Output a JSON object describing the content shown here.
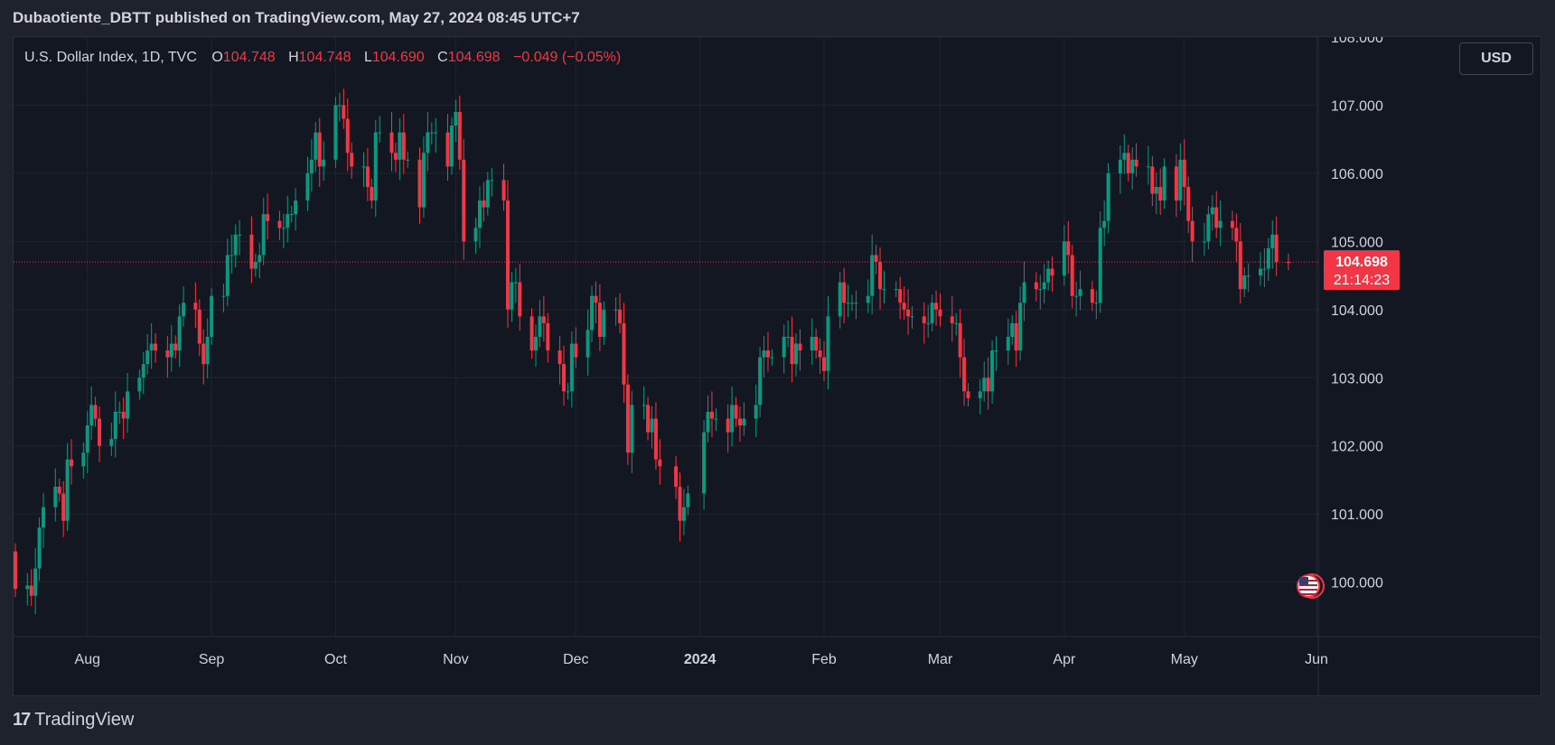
{
  "publisher_line": "Dubaotiente_DBTT published on TradingView.com, May 27, 2024 08:45 UTC+7",
  "legend": {
    "symbol": "U.S. Dollar Index, 1D, TVC",
    "open_label": "O",
    "open": "104.748",
    "high_label": "H",
    "high": "104.748",
    "low_label": "L",
    "low": "104.690",
    "close_label": "C",
    "close": "104.698",
    "change": "−0.049 (−0.05%)"
  },
  "currency_button": "USD",
  "price_badge": {
    "price": "104.698",
    "countdown": "21:14:23"
  },
  "footer": {
    "brand": "TradingView",
    "logo_mark": "17"
  },
  "colors": {
    "up": "#089981",
    "down": "#f23645",
    "background": "#131722",
    "grid": "#1f2430",
    "text": "#d1d4dc",
    "price_line": "#f23645"
  },
  "icons": {
    "flag": "us-flag-icon",
    "logo": "tradingview-logo-icon"
  },
  "chart_data": {
    "type": "candlestick",
    "title": "U.S. Dollar Index, 1D, TVC",
    "ylim": [
      99.2,
      108.0
    ],
    "y_ticks": [
      100,
      101,
      102,
      103,
      104,
      105,
      106,
      107,
      108
    ],
    "y_tick_labels": [
      "100.000",
      "101.000",
      "102.000",
      "103.000",
      "104.000",
      "105.000",
      "106.000",
      "107.000",
      "108.000"
    ],
    "x_ticks": [
      {
        "label": "Aug",
        "date": "2023-08-01"
      },
      {
        "label": "Sep",
        "date": "2023-09-01"
      },
      {
        "label": "Oct",
        "date": "2023-10-02"
      },
      {
        "label": "Nov",
        "date": "2023-11-01"
      },
      {
        "label": "Dec",
        "date": "2023-12-01"
      },
      {
        "label": "2024",
        "date": "2024-01-01"
      },
      {
        "label": "Feb",
        "date": "2024-02-01"
      },
      {
        "label": "Mar",
        "date": "2024-03-01"
      },
      {
        "label": "Apr",
        "date": "2024-04-01"
      },
      {
        "label": "May",
        "date": "2024-05-01"
      },
      {
        "label": "Jun",
        "date": "2024-06-03"
      }
    ],
    "last_price": 104.698,
    "grid": true,
    "closes": [
      [
        "2023-07-14",
        99.9
      ],
      [
        "2023-07-17",
        99.95
      ],
      [
        "2023-07-18",
        99.8
      ],
      [
        "2023-07-19",
        100.2
      ],
      [
        "2023-07-20",
        100.8
      ],
      [
        "2023-07-21",
        101.1
      ],
      [
        "2023-07-24",
        101.4
      ],
      [
        "2023-07-25",
        101.3
      ],
      [
        "2023-07-26",
        100.9
      ],
      [
        "2023-07-27",
        101.8
      ],
      [
        "2023-07-28",
        101.7
      ],
      [
        "2023-07-31",
        101.9
      ],
      [
        "2023-08-01",
        102.3
      ],
      [
        "2023-08-02",
        102.6
      ],
      [
        "2023-08-03",
        102.4
      ],
      [
        "2023-08-04",
        102.0
      ],
      [
        "2023-08-07",
        102.1
      ],
      [
        "2023-08-08",
        102.5
      ],
      [
        "2023-08-09",
        102.5
      ],
      [
        "2023-08-10",
        102.4
      ],
      [
        "2023-08-11",
        102.8
      ],
      [
        "2023-08-14",
        103.0
      ],
      [
        "2023-08-15",
        103.2
      ],
      [
        "2023-08-16",
        103.4
      ],
      [
        "2023-08-17",
        103.5
      ],
      [
        "2023-08-18",
        103.4
      ],
      [
        "2023-08-21",
        103.3
      ],
      [
        "2023-08-22",
        103.5
      ],
      [
        "2023-08-23",
        103.4
      ],
      [
        "2023-08-24",
        103.9
      ],
      [
        "2023-08-25",
        104.1
      ],
      [
        "2023-08-28",
        104.0
      ],
      [
        "2023-08-29",
        103.5
      ],
      [
        "2023-08-30",
        103.2
      ],
      [
        "2023-08-31",
        103.6
      ],
      [
        "2023-09-01",
        104.2
      ],
      [
        "2023-09-04",
        104.2
      ],
      [
        "2023-09-05",
        104.8
      ],
      [
        "2023-09-06",
        104.8
      ],
      [
        "2023-09-07",
        105.1
      ],
      [
        "2023-09-08",
        105.1
      ],
      [
        "2023-09-11",
        104.6
      ],
      [
        "2023-09-12",
        104.7
      ],
      [
        "2023-09-13",
        104.8
      ],
      [
        "2023-09-14",
        105.4
      ],
      [
        "2023-09-15",
        105.3
      ],
      [
        "2023-09-18",
        105.2
      ],
      [
        "2023-09-19",
        105.2
      ],
      [
        "2023-09-20",
        105.4
      ],
      [
        "2023-09-21",
        105.4
      ],
      [
        "2023-09-22",
        105.6
      ],
      [
        "2023-09-25",
        106.0
      ],
      [
        "2023-09-26",
        106.2
      ],
      [
        "2023-09-27",
        106.6
      ],
      [
        "2023-09-28",
        106.1
      ],
      [
        "2023-09-29",
        106.2
      ],
      [
        "2023-10-02",
        107.0
      ],
      [
        "2023-10-03",
        107.0
      ],
      [
        "2023-10-04",
        106.8
      ],
      [
        "2023-10-05",
        106.3
      ],
      [
        "2023-10-06",
        106.1
      ],
      [
        "2023-10-09",
        106.1
      ],
      [
        "2023-10-10",
        105.8
      ],
      [
        "2023-10-11",
        105.6
      ],
      [
        "2023-10-12",
        106.6
      ],
      [
        "2023-10-13",
        106.6
      ],
      [
        "2023-10-16",
        106.3
      ],
      [
        "2023-10-17",
        106.2
      ],
      [
        "2023-10-18",
        106.6
      ],
      [
        "2023-10-19",
        106.2
      ],
      [
        "2023-10-20",
        106.2
      ],
      [
        "2023-10-23",
        105.5
      ],
      [
        "2023-10-24",
        106.3
      ],
      [
        "2023-10-25",
        106.6
      ],
      [
        "2023-10-26",
        106.6
      ],
      [
        "2023-10-27",
        106.6
      ],
      [
        "2023-10-30",
        106.1
      ],
      [
        "2023-10-31",
        106.7
      ],
      [
        "2023-11-01",
        106.9
      ],
      [
        "2023-11-02",
        106.2
      ],
      [
        "2023-11-03",
        105.0
      ],
      [
        "2023-11-06",
        105.2
      ],
      [
        "2023-11-07",
        105.6
      ],
      [
        "2023-11-08",
        105.5
      ],
      [
        "2023-11-09",
        105.9
      ],
      [
        "2023-11-10",
        105.9
      ],
      [
        "2023-11-13",
        105.6
      ],
      [
        "2023-11-14",
        104.0
      ],
      [
        "2023-11-15",
        104.4
      ],
      [
        "2023-11-16",
        104.4
      ],
      [
        "2023-11-17",
        103.9
      ],
      [
        "2023-11-20",
        103.4
      ],
      [
        "2023-11-21",
        103.6
      ],
      [
        "2023-11-22",
        103.9
      ],
      [
        "2023-11-23",
        103.8
      ],
      [
        "2023-11-24",
        103.4
      ],
      [
        "2023-11-27",
        103.2
      ],
      [
        "2023-11-28",
        102.8
      ],
      [
        "2023-11-29",
        102.8
      ],
      [
        "2023-11-30",
        103.5
      ],
      [
        "2023-12-01",
        103.3
      ],
      [
        "2023-12-04",
        103.7
      ],
      [
        "2023-12-05",
        104.2
      ],
      [
        "2023-12-06",
        104.1
      ],
      [
        "2023-12-07",
        103.6
      ],
      [
        "2023-12-08",
        104.0
      ],
      [
        "2023-12-11",
        104.0
      ],
      [
        "2023-12-12",
        103.8
      ],
      [
        "2023-12-13",
        102.9
      ],
      [
        "2023-12-14",
        101.9
      ],
      [
        "2023-12-15",
        102.6
      ],
      [
        "2023-12-18",
        102.6
      ],
      [
        "2023-12-19",
        102.2
      ],
      [
        "2023-12-20",
        102.4
      ],
      [
        "2023-12-21",
        101.8
      ],
      [
        "2023-12-22",
        101.7
      ],
      [
        "2023-12-26",
        101.4
      ],
      [
        "2023-12-27",
        100.9
      ],
      [
        "2023-12-28",
        101.1
      ],
      [
        "2023-12-29",
        101.3
      ],
      [
        "2024-01-02",
        102.2
      ],
      [
        "2024-01-03",
        102.5
      ],
      [
        "2024-01-04",
        102.4
      ],
      [
        "2024-01-05",
        102.4
      ],
      [
        "2024-01-08",
        102.2
      ],
      [
        "2024-01-09",
        102.6
      ],
      [
        "2024-01-10",
        102.4
      ],
      [
        "2024-01-11",
        102.3
      ],
      [
        "2024-01-12",
        102.4
      ],
      [
        "2024-01-15",
        102.6
      ],
      [
        "2024-01-16",
        103.3
      ],
      [
        "2024-01-17",
        103.4
      ],
      [
        "2024-01-18",
        103.3
      ],
      [
        "2024-01-19",
        103.3
      ],
      [
        "2024-01-22",
        103.6
      ],
      [
        "2024-01-23",
        103.6
      ],
      [
        "2024-01-24",
        103.2
      ],
      [
        "2024-01-25",
        103.5
      ],
      [
        "2024-01-26",
        103.4
      ],
      [
        "2024-01-29",
        103.6
      ],
      [
        "2024-01-30",
        103.4
      ],
      [
        "2024-01-31",
        103.3
      ],
      [
        "2024-02-01",
        103.1
      ],
      [
        "2024-02-02",
        103.9
      ],
      [
        "2024-02-05",
        104.4
      ],
      [
        "2024-02-06",
        104.1
      ],
      [
        "2024-02-07",
        104.1
      ],
      [
        "2024-02-08",
        104.1
      ],
      [
        "2024-02-09",
        104.1
      ],
      [
        "2024-02-12",
        104.2
      ],
      [
        "2024-02-13",
        104.8
      ],
      [
        "2024-02-14",
        104.7
      ],
      [
        "2024-02-15",
        104.3
      ],
      [
        "2024-02-16",
        104.3
      ],
      [
        "2024-02-19",
        104.3
      ],
      [
        "2024-02-20",
        104.1
      ],
      [
        "2024-02-21",
        104.0
      ],
      [
        "2024-02-22",
        103.9
      ],
      [
        "2024-02-23",
        103.9
      ],
      [
        "2024-02-26",
        103.8
      ],
      [
        "2024-02-27",
        103.8
      ],
      [
        "2024-02-28",
        104.1
      ],
      [
        "2024-02-29",
        104.0
      ],
      [
        "2024-03-01",
        103.9
      ],
      [
        "2024-03-04",
        103.8
      ],
      [
        "2024-03-05",
        103.8
      ],
      [
        "2024-03-06",
        103.3
      ],
      [
        "2024-03-07",
        102.8
      ],
      [
        "2024-03-08",
        102.7
      ],
      [
        "2024-03-11",
        102.8
      ],
      [
        "2024-03-12",
        103.0
      ],
      [
        "2024-03-13",
        102.8
      ],
      [
        "2024-03-14",
        103.4
      ],
      [
        "2024-03-15",
        103.4
      ],
      [
        "2024-03-18",
        103.6
      ],
      [
        "2024-03-19",
        103.8
      ],
      [
        "2024-03-20",
        103.4
      ],
      [
        "2024-03-21",
        104.1
      ],
      [
        "2024-03-22",
        104.4
      ],
      [
        "2024-03-25",
        104.3
      ],
      [
        "2024-03-26",
        104.3
      ],
      [
        "2024-03-27",
        104.4
      ],
      [
        "2024-03-28",
        104.6
      ],
      [
        "2024-03-29",
        104.5
      ],
      [
        "2024-04-01",
        105.0
      ],
      [
        "2024-04-02",
        104.8
      ],
      [
        "2024-04-03",
        104.2
      ],
      [
        "2024-04-04",
        104.2
      ],
      [
        "2024-04-05",
        104.3
      ],
      [
        "2024-04-08",
        104.1
      ],
      [
        "2024-04-09",
        104.1
      ],
      [
        "2024-04-10",
        105.2
      ],
      [
        "2024-04-11",
        105.3
      ],
      [
        "2024-04-12",
        106.0
      ],
      [
        "2024-04-15",
        106.2
      ],
      [
        "2024-04-16",
        106.3
      ],
      [
        "2024-04-17",
        106.0
      ],
      [
        "2024-04-18",
        106.2
      ],
      [
        "2024-04-19",
        106.1
      ],
      [
        "2024-04-22",
        106.1
      ],
      [
        "2024-04-23",
        105.7
      ],
      [
        "2024-04-24",
        105.8
      ],
      [
        "2024-04-25",
        105.6
      ],
      [
        "2024-04-26",
        106.1
      ],
      [
        "2024-04-29",
        105.6
      ],
      [
        "2024-04-30",
        106.2
      ],
      [
        "2024-05-01",
        105.8
      ],
      [
        "2024-05-02",
        105.3
      ],
      [
        "2024-05-03",
        105.0
      ],
      [
        "2024-05-06",
        105.0
      ],
      [
        "2024-05-07",
        105.4
      ],
      [
        "2024-05-08",
        105.5
      ],
      [
        "2024-05-09",
        105.2
      ],
      [
        "2024-05-10",
        105.3
      ],
      [
        "2024-05-13",
        105.2
      ],
      [
        "2024-05-14",
        105.0
      ],
      [
        "2024-05-15",
        104.3
      ],
      [
        "2024-05-16",
        104.5
      ],
      [
        "2024-05-17",
        104.5
      ],
      [
        "2024-05-20",
        104.6
      ],
      [
        "2024-05-21",
        104.6
      ],
      [
        "2024-05-22",
        104.9
      ],
      [
        "2024-05-23",
        105.1
      ],
      [
        "2024-05-24",
        104.7
      ],
      [
        "2024-05-27",
        104.698
      ]
    ]
  }
}
